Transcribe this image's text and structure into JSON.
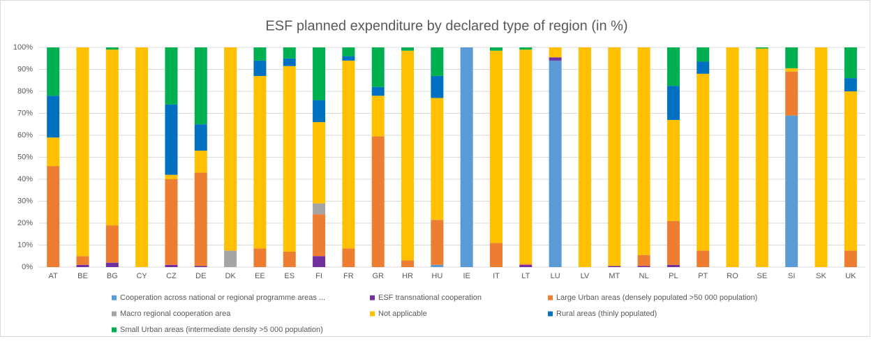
{
  "chart_data": {
    "type": "stacked_bar",
    "title": "ESF planned expenditure by declared type of region (in %)",
    "categories": [
      "AT",
      "BE",
      "BG",
      "CY",
      "CZ",
      "DE",
      "DK",
      "EE",
      "ES",
      "FI",
      "FR",
      "GR",
      "HR",
      "HU",
      "IE",
      "IT",
      "LT",
      "LU",
      "LV",
      "MT",
      "NL",
      "PL",
      "PT",
      "RO",
      "SE",
      "SI",
      "SK",
      "UK"
    ],
    "series": [
      {
        "name": "Cooperation across national or regional programme areas ...",
        "color": "#5b9bd5",
        "values": [
          0,
          0,
          0,
          0,
          0,
          0,
          0,
          0,
          0,
          0,
          0,
          0,
          0,
          1,
          100,
          0,
          0,
          94,
          0,
          0,
          0,
          0,
          0,
          0,
          0,
          69,
          0,
          0
        ]
      },
      {
        "name": "ESF transnational cooperation",
        "color": "#7030a0",
        "values": [
          0,
          1,
          2,
          0,
          1,
          0.5,
          0,
          0,
          0,
          5,
          0,
          0,
          0,
          0,
          0,
          0,
          1,
          1.5,
          0,
          0.5,
          0.5,
          1,
          0,
          0,
          0,
          0,
          0,
          0
        ]
      },
      {
        "name": "Large Urban areas (densely populated >50 000 population)",
        "color": "#ed7d31",
        "values": [
          46,
          4,
          17,
          0,
          39,
          42.5,
          0,
          8.5,
          7,
          19,
          8.5,
          59.5,
          3,
          20.5,
          0,
          11,
          0.5,
          0,
          0,
          0,
          5,
          20,
          7.5,
          0,
          0,
          20,
          0,
          7.5
        ]
      },
      {
        "name": "Macro regional cooperation area",
        "color": "#a5a5a5",
        "values": [
          0,
          0,
          0,
          0,
          0,
          0,
          7.5,
          0,
          0,
          5,
          0,
          0,
          0,
          0,
          0,
          0,
          0,
          0,
          0,
          0,
          0,
          0,
          0,
          0,
          0,
          0,
          0,
          0
        ]
      },
      {
        "name": "Not applicable",
        "color": "#ffc000",
        "values": [
          13,
          95,
          80,
          100,
          2,
          10,
          92.5,
          78.5,
          84.5,
          37,
          85.5,
          18.5,
          95.5,
          55.5,
          0,
          87.5,
          97.5,
          4.5,
          100,
          99.5,
          94.5,
          46,
          80.5,
          100,
          99.5,
          1.5,
          100,
          72.5
        ]
      },
      {
        "name": "Rural areas (thinly populated)",
        "color": "#0070c0",
        "values": [
          19,
          0,
          0,
          0,
          32,
          12,
          0,
          7,
          3.5,
          10,
          2,
          4,
          0,
          10,
          0,
          0,
          0,
          0,
          0,
          0,
          0,
          15.5,
          5.5,
          0,
          0,
          0,
          0,
          6
        ]
      },
      {
        "name": "Small Urban areas (intermediate density >5 000 population)",
        "color": "#00b050",
        "values": [
          22,
          0,
          1,
          0,
          26,
          35,
          0,
          6,
          5,
          24,
          4,
          18,
          1.5,
          13,
          0,
          1.5,
          1,
          0,
          0,
          0,
          0,
          17.5,
          6.5,
          0,
          0.5,
          9.5,
          0,
          14
        ]
      }
    ],
    "ylim": [
      0,
      100
    ],
    "yticks": [
      {
        "value": 0,
        "label": "0%"
      },
      {
        "value": 10,
        "label": "10%"
      },
      {
        "value": 20,
        "label": "20%"
      },
      {
        "value": 30,
        "label": "30%"
      },
      {
        "value": 40,
        "label": "40%"
      },
      {
        "value": 50,
        "label": "50%"
      },
      {
        "value": 60,
        "label": "60%"
      },
      {
        "value": 70,
        "label": "70%"
      },
      {
        "value": 80,
        "label": "80%"
      },
      {
        "value": 90,
        "label": "90%"
      },
      {
        "value": 100,
        "label": "100%"
      }
    ],
    "grid": true
  }
}
